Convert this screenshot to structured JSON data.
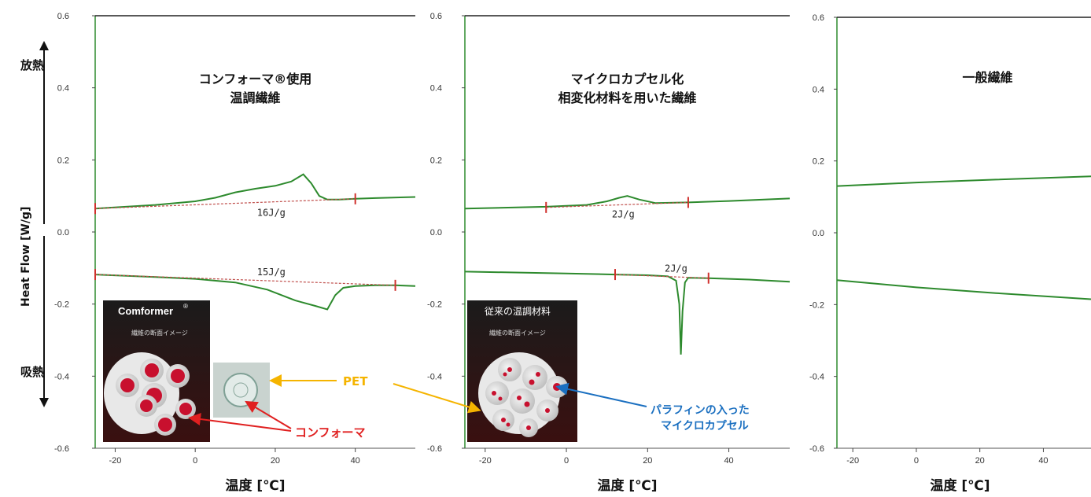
{
  "y_axis": {
    "label": "Heat Flow [W/g]",
    "top_side": "放熱",
    "bottom_side": "吸熱"
  },
  "insets": {
    "comformer": {
      "title": "Comformer",
      "title_mark": "®",
      "subtitle": "繊維の断面イメージ"
    },
    "conventional": {
      "title": "従来の温調材料",
      "subtitle": "繊維の断面イメージ"
    }
  },
  "callouts": {
    "pet": "PET",
    "conformer": "コンフォーマ",
    "paraffin_line1": "パラフィンの入った",
    "paraffin_line2": "マイクロカプセル"
  },
  "colors": {
    "heating_curve": "#2d8a2d",
    "baseline": "#c0504d",
    "axis": "#2e8b2e",
    "callout_pet": "#f5b400",
    "callout_red": "#e02020",
    "callout_blue": "#1a6fc0"
  },
  "chart_data": [
    {
      "type": "line",
      "title": [
        "コンフォーマ®使用",
        "温調繊維"
      ],
      "xlabel": "温度 [℃]",
      "ylabel": "Heat Flow [W/g]",
      "xlim": [
        -25,
        55
      ],
      "ylim": [
        -0.6,
        0.6
      ],
      "xticks": [
        -20,
        0,
        20,
        40
      ],
      "yticks": [
        0.6,
        0.4,
        0.2,
        0.0,
        -0.2,
        -0.4,
        -0.6
      ],
      "ytick_labels": [
        "0.6",
        "0.4",
        "0.2",
        "0.0",
        "-0.2",
        "-0.4",
        "-0.6"
      ],
      "annotations": [
        {
          "text": "16J/g",
          "x": 19,
          "y": 0.045
        },
        {
          "text": "15J/g",
          "x": 19,
          "y": -0.12
        }
      ],
      "series": [
        {
          "role": "heating",
          "x": [
            -25,
            -10,
            0,
            5,
            10,
            15,
            20,
            24,
            27,
            29,
            31,
            33,
            36,
            40,
            45,
            55
          ],
          "y": [
            0.065,
            0.075,
            0.085,
            0.095,
            0.11,
            0.12,
            0.128,
            0.14,
            0.16,
            0.135,
            0.1,
            0.09,
            0.09,
            0.092,
            0.094,
            0.097
          ]
        },
        {
          "role": "heating-baseline",
          "x": [
            -25,
            40
          ],
          "y": [
            0.065,
            0.092
          ]
        },
        {
          "role": "cooling",
          "x": [
            -25,
            -10,
            0,
            10,
            18,
            25,
            30,
            33,
            35,
            37,
            40,
            45,
            50,
            55
          ],
          "y": [
            -0.118,
            -0.125,
            -0.13,
            -0.14,
            -0.16,
            -0.19,
            -0.205,
            -0.215,
            -0.175,
            -0.155,
            -0.15,
            -0.148,
            -0.148,
            -0.15
          ]
        },
        {
          "role": "cooling-baseline",
          "x": [
            -25,
            50
          ],
          "y": [
            -0.118,
            -0.148
          ]
        }
      ]
    },
    {
      "type": "line",
      "title": [
        "マイクロカプセル化",
        "相変化材料を用いた繊維"
      ],
      "xlabel": "温度 [℃]",
      "ylabel": "",
      "xlim": [
        -25,
        55
      ],
      "ylim": [
        -0.6,
        0.6
      ],
      "xticks": [
        -20,
        0,
        20,
        40
      ],
      "yticks": [
        0.6,
        0.4,
        0.2,
        0.0,
        -0.2,
        -0.4,
        -0.6
      ],
      "ytick_labels": [
        "0.6",
        "0.4",
        "0.2",
        "0.0",
        "-0.2",
        "-0.4",
        "-0.6"
      ],
      "annotations": [
        {
          "text": "2J/g",
          "x": 14,
          "y": 0.04
        },
        {
          "text": "2J/g",
          "x": 27,
          "y": -0.11
        }
      ],
      "series": [
        {
          "role": "heating",
          "x": [
            -25,
            -5,
            5,
            10,
            13,
            15,
            18,
            22,
            30,
            40,
            55
          ],
          "y": [
            0.065,
            0.07,
            0.075,
            0.085,
            0.095,
            0.1,
            0.09,
            0.08,
            0.082,
            0.086,
            0.093
          ]
        },
        {
          "role": "heating-baseline",
          "x": [
            -5,
            30
          ],
          "y": [
            0.068,
            0.082
          ]
        },
        {
          "role": "cooling",
          "x": [
            -25,
            0,
            12,
            20,
            25,
            27,
            27.8,
            28.2,
            28.6,
            29.2,
            30,
            35,
            45,
            55
          ],
          "y": [
            -0.11,
            -0.115,
            -0.118,
            -0.12,
            -0.123,
            -0.135,
            -0.2,
            -0.34,
            -0.22,
            -0.14,
            -0.127,
            -0.128,
            -0.132,
            -0.138
          ]
        },
        {
          "role": "cooling-baseline",
          "x": [
            12,
            35
          ],
          "y": [
            -0.118,
            -0.128
          ]
        }
      ]
    },
    {
      "type": "line",
      "title": [
        "一般繊維"
      ],
      "xlabel": "温度 [℃]",
      "ylabel": "",
      "xlim": [
        -25,
        55
      ],
      "ylim": [
        -0.6,
        0.6
      ],
      "xticks": [
        -20,
        0,
        20,
        40
      ],
      "yticks": [
        0.6,
        0.4,
        0.2,
        0.0,
        -0.2,
        -0.4,
        -0.6
      ],
      "ytick_labels": [
        "0.6",
        "0.4",
        "0.2",
        "0.0",
        "-0.2",
        "-0.4",
        "-0.6"
      ],
      "annotations": [],
      "series": [
        {
          "role": "heating",
          "x": [
            -25,
            0,
            25,
            55
          ],
          "y": [
            0.13,
            0.14,
            0.148,
            0.157
          ]
        },
        {
          "role": "cooling",
          "x": [
            -25,
            0,
            25,
            55
          ],
          "y": [
            -0.132,
            -0.152,
            -0.168,
            -0.185
          ]
        }
      ]
    }
  ]
}
